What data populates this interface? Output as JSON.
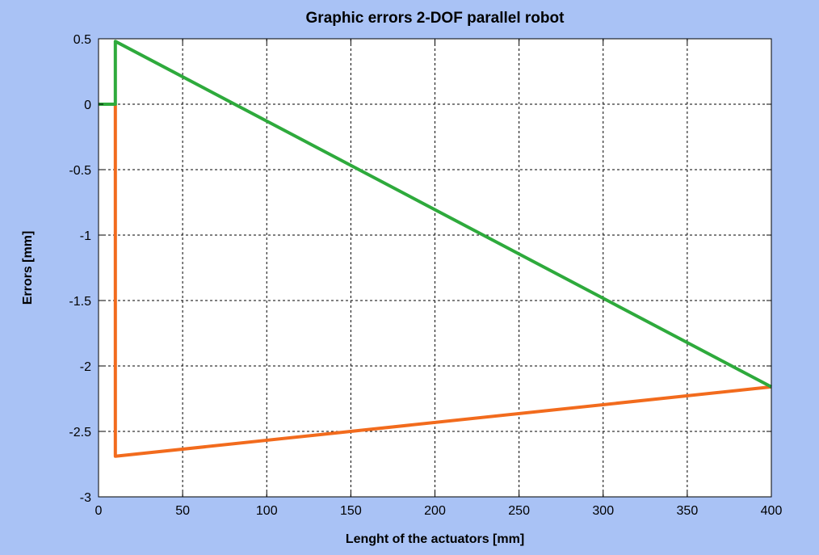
{
  "colors": {
    "figure_background": "#a9c2f5",
    "axes_background": "#ffffff",
    "series_green": "#2eaa3c",
    "series_orange": "#f26b1d"
  },
  "chart_data": {
    "type": "line",
    "title": "Graphic errors 2-DOF parallel robot",
    "xlabel": "Lenght of the actuators [mm]",
    "ylabel": "Errors [mm]",
    "xlim": [
      0,
      400
    ],
    "ylim": [
      -3,
      0.5
    ],
    "xticks": [
      0,
      50,
      100,
      150,
      200,
      250,
      300,
      350,
      400
    ],
    "xtick_labels": [
      "0",
      "50",
      "100",
      "150",
      "200",
      "250",
      "300",
      "350",
      "400"
    ],
    "yticks": [
      0.5,
      0,
      -0.5,
      -1,
      -1.5,
      -2,
      -2.5,
      -3
    ],
    "ytick_labels": [
      "0.5",
      "0",
      "-0.5",
      "-1",
      "-1.5",
      "-2",
      "-2.5",
      "-3"
    ],
    "grid": true,
    "series": [
      {
        "color": "#f26b1d",
        "x": [
          0,
          10,
          10,
          400
        ],
        "y": [
          0,
          0,
          -2.69,
          -2.16
        ]
      },
      {
        "color": "#2eaa3c",
        "x": [
          0,
          10,
          10,
          400
        ],
        "y": [
          0,
          0,
          0.48,
          -2.16
        ]
      }
    ]
  }
}
